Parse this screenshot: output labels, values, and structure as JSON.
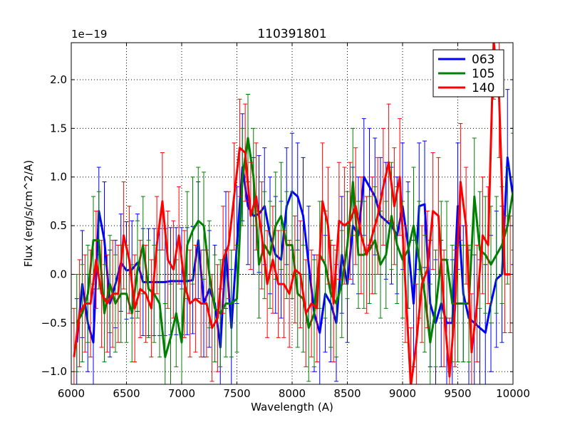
{
  "chart_data": {
    "type": "line",
    "title": "110391801",
    "xlabel": "Wavelength (A)",
    "ylabel": "Flux (erg/s/cm^2/A)",
    "offset_label": "1e−19",
    "xlim": [
      6000,
      10000
    ],
    "ylim": [
      -1.13,
      2.38
    ],
    "xticks": [
      6000,
      6500,
      7000,
      7500,
      8000,
      8500,
      9000,
      9500,
      10000
    ],
    "yticks": [
      -1.0,
      -0.5,
      0.0,
      0.5,
      1.0,
      1.5,
      2.0
    ],
    "xtick_labels": [
      "6000",
      "6500",
      "7000",
      "7500",
      "8000",
      "8500",
      "9000",
      "9500",
      "10000"
    ],
    "ytick_labels": [
      "−1.0",
      "−0.5",
      "0.0",
      "0.5",
      "1.0",
      "1.5",
      "2.0"
    ],
    "grid": true,
    "legend_position": "top-right",
    "series": [
      {
        "name": "063",
        "color": "#0000ff",
        "x": [
          6050,
          6100,
          6150,
          6200,
          6250,
          6300,
          6350,
          6400,
          6450,
          6500,
          6550,
          6600,
          6650,
          6700,
          6750,
          6800,
          6850,
          6900,
          6950,
          7000,
          7050,
          7100,
          7150,
          7200,
          7250,
          7300,
          7350,
          7400,
          7450,
          7500,
          7550,
          7600,
          7650,
          7700,
          7750,
          7800,
          7850,
          7900,
          7950,
          8000,
          8050,
          8100,
          8150,
          8200,
          8250,
          8300,
          8350,
          8400,
          8450,
          8500,
          8550,
          8600,
          8650,
          8700,
          8750,
          8800,
          8850,
          8900,
          8950,
          9000,
          9050,
          9100,
          9150,
          9200,
          9250,
          9300,
          9350,
          9400,
          9450,
          9500,
          9550,
          9600,
          9650,
          9700,
          9750,
          9800,
          9850,
          9900,
          9950,
          10000
        ],
        "y": [
          -0.7,
          -0.1,
          -0.5,
          -0.7,
          0.65,
          0.35,
          -0.3,
          -0.1,
          0.12,
          0.04,
          0.05,
          0.12,
          -0.08,
          -0.08,
          -0.08,
          -0.08,
          -0.08,
          -0.07,
          -0.07,
          -0.07,
          -0.07,
          -0.06,
          0.35,
          -0.3,
          -0.15,
          -0.3,
          -0.75,
          0.25,
          -0.55,
          0.3,
          1.1,
          0.7,
          0.6,
          0.62,
          0.7,
          0.4,
          0.2,
          0.15,
          0.7,
          0.85,
          0.8,
          0.6,
          0.1,
          -0.4,
          -0.6,
          -0.2,
          -0.3,
          -0.5,
          0.2,
          -0.1,
          0.5,
          0.4,
          1.0,
          0.9,
          0.8,
          0.6,
          0.55,
          0.5,
          0.4,
          0.7,
          0.3,
          -0.3,
          0.7,
          0.72,
          -0.3,
          -0.5,
          -0.3,
          -0.5,
          -0.5,
          0.7,
          -0.2,
          -0.45,
          -0.5,
          -0.55,
          -0.6,
          -0.3,
          -0.05,
          0.0,
          1.2,
          0.8
        ],
        "err": [
          0.45,
          0.55,
          0.5,
          0.55,
          0.45,
          0.6,
          0.55,
          0.45,
          0.5,
          0.5,
          0.5,
          0.5,
          0.55,
          0.55,
          0.55,
          0.55,
          0.55,
          0.55,
          0.55,
          0.55,
          0.55,
          0.55,
          0.6,
          0.55,
          0.6,
          0.6,
          0.6,
          0.6,
          0.6,
          0.6,
          0.55,
          0.6,
          0.6,
          0.6,
          0.6,
          0.6,
          0.6,
          0.6,
          0.6,
          0.6,
          0.55,
          0.6,
          0.6,
          0.6,
          0.6,
          0.6,
          0.6,
          0.6,
          0.6,
          0.6,
          0.6,
          0.6,
          0.6,
          0.6,
          0.6,
          0.6,
          0.6,
          0.6,
          0.6,
          0.65,
          0.65,
          0.65,
          0.65,
          0.65,
          0.65,
          0.65,
          0.65,
          0.65,
          0.65,
          0.65,
          0.7,
          0.7,
          0.7,
          0.7,
          0.7,
          0.7,
          0.7,
          0.7,
          0.7,
          0.7
        ]
      },
      {
        "name": "105",
        "color": "#008000",
        "x": [
          6050,
          6100,
          6150,
          6200,
          6250,
          6300,
          6350,
          6400,
          6450,
          6500,
          6550,
          6600,
          6650,
          6700,
          6750,
          6800,
          6850,
          6900,
          6950,
          7000,
          7050,
          7100,
          7150,
          7200,
          7250,
          7300,
          7350,
          7400,
          7450,
          7500,
          7550,
          7600,
          7650,
          7700,
          7750,
          7800,
          7850,
          7900,
          7950,
          8000,
          8050,
          8100,
          8150,
          8200,
          8250,
          8300,
          8350,
          8400,
          8450,
          8500,
          8550,
          8600,
          8650,
          8700,
          8750,
          8800,
          8850,
          8900,
          8950,
          9000,
          9050,
          9100,
          9150,
          9200,
          9250,
          9300,
          9350,
          9400,
          9450,
          9500,
          9550,
          9600,
          9650,
          9700,
          9750,
          9800,
          9850,
          9900,
          9950,
          10000
        ],
        "y": [
          -0.5,
          -0.4,
          -0.2,
          0.35,
          0.35,
          -0.4,
          -0.1,
          -0.3,
          -0.2,
          -0.2,
          -0.4,
          0.05,
          0.3,
          -0.15,
          -0.2,
          -0.3,
          -0.85,
          -0.65,
          -0.4,
          -0.7,
          0.3,
          0.45,
          0.55,
          0.5,
          0.0,
          -0.35,
          -0.4,
          -0.3,
          -0.3,
          -0.25,
          1.0,
          1.4,
          1.0,
          0.1,
          0.3,
          0.2,
          0.5,
          0.6,
          0.3,
          0.3,
          -0.2,
          -0.25,
          -0.55,
          -0.4,
          0.2,
          0.1,
          -0.2,
          -0.3,
          -0.1,
          0.3,
          0.95,
          0.2,
          0.2,
          0.25,
          0.35,
          0.1,
          0.2,
          0.6,
          0.3,
          0.15,
          0.25,
          0.5,
          0.15,
          -0.2,
          -0.7,
          -0.35,
          0.15,
          0.15,
          -0.3,
          -0.3,
          -0.3,
          -0.3,
          0.8,
          0.25,
          0.2,
          0.1,
          0.2,
          0.3,
          0.5,
          0.85
        ],
        "err": [
          0.5,
          0.5,
          0.5,
          0.45,
          0.5,
          0.5,
          0.5,
          0.5,
          0.5,
          0.5,
          0.5,
          0.5,
          0.5,
          0.5,
          0.5,
          0.55,
          0.55,
          0.55,
          0.55,
          0.55,
          0.55,
          0.55,
          0.55,
          0.55,
          0.55,
          0.55,
          0.55,
          0.55,
          0.55,
          0.55,
          0.5,
          0.45,
          0.5,
          0.55,
          0.55,
          0.55,
          0.55,
          0.55,
          0.55,
          0.55,
          0.55,
          0.55,
          0.55,
          0.55,
          0.55,
          0.55,
          0.55,
          0.55,
          0.55,
          0.55,
          0.55,
          0.55,
          0.55,
          0.55,
          0.55,
          0.55,
          0.55,
          0.55,
          0.6,
          0.6,
          0.6,
          0.6,
          0.6,
          0.6,
          0.6,
          0.6,
          0.6,
          0.6,
          0.6,
          0.6,
          0.6,
          0.6,
          0.6,
          0.6,
          0.6,
          0.6,
          0.6,
          0.6,
          0.6,
          0.6
        ]
      },
      {
        "name": "140",
        "color": "#ff0000",
        "x": [
          6025,
          6075,
          6125,
          6175,
          6225,
          6275,
          6325,
          6375,
          6425,
          6475,
          6525,
          6575,
          6625,
          6675,
          6725,
          6775,
          6825,
          6875,
          6925,
          6975,
          7025,
          7075,
          7125,
          7175,
          7225,
          7275,
          7325,
          7375,
          7425,
          7475,
          7525,
          7575,
          7625,
          7675,
          7725,
          7775,
          7825,
          7875,
          7925,
          7975,
          8025,
          8075,
          8125,
          8175,
          8225,
          8275,
          8325,
          8375,
          8425,
          8475,
          8525,
          8575,
          8625,
          8675,
          8725,
          8775,
          8825,
          8875,
          8925,
          8975,
          9025,
          9075,
          9125,
          9175,
          9225,
          9275,
          9325,
          9375,
          9425,
          9475,
          9525,
          9575,
          9625,
          9675,
          9725,
          9775,
          9825,
          9875,
          9925,
          9975
        ],
        "y": [
          -0.85,
          -0.4,
          -0.3,
          -0.3,
          0.15,
          -0.2,
          -0.3,
          -0.2,
          -0.2,
          0.4,
          0.15,
          -0.35,
          -0.15,
          -0.2,
          -0.35,
          0.3,
          0.75,
          0.15,
          0.05,
          0.4,
          -0.1,
          -0.3,
          -0.25,
          -0.3,
          -0.3,
          -0.55,
          -0.45,
          0.15,
          0.3,
          0.8,
          1.3,
          1.25,
          0.6,
          0.8,
          0.4,
          -0.1,
          0.15,
          -0.1,
          -0.1,
          -0.2,
          0.05,
          0.0,
          -0.4,
          -0.3,
          -0.35,
          0.75,
          0.5,
          -0.3,
          0.55,
          0.5,
          0.55,
          0.7,
          0.4,
          0.2,
          0.4,
          0.6,
          0.9,
          1.15,
          0.7,
          1.0,
          -0.1,
          -1.15,
          -0.7,
          -0.1,
          0.05,
          0.65,
          0.6,
          -0.35,
          -1.05,
          -0.35,
          0.95,
          0.5,
          -0.8,
          -0.3,
          0.4,
          0.3,
          2.4,
          1.8,
          0.0,
          0.0
        ],
        "err": [
          0.5,
          0.55,
          0.5,
          0.55,
          0.5,
          0.55,
          0.5,
          0.55,
          0.5,
          0.55,
          0.55,
          0.55,
          0.5,
          0.5,
          0.5,
          0.5,
          0.5,
          0.5,
          0.5,
          0.5,
          0.55,
          0.55,
          0.55,
          0.55,
          0.55,
          0.55,
          0.55,
          0.55,
          0.55,
          0.55,
          0.5,
          0.5,
          0.55,
          0.55,
          0.55,
          0.55,
          0.55,
          0.55,
          0.55,
          0.55,
          0.55,
          0.55,
          0.55,
          0.55,
          0.55,
          0.6,
          0.6,
          0.6,
          0.6,
          0.6,
          0.6,
          0.6,
          0.6,
          0.6,
          0.6,
          0.6,
          0.6,
          0.6,
          0.6,
          0.6,
          0.6,
          0.6,
          0.6,
          0.6,
          0.6,
          0.6,
          0.6,
          0.6,
          0.6,
          0.6,
          0.6,
          0.6,
          0.6,
          0.6,
          0.6,
          0.6,
          0.6,
          0.6,
          0.6,
          0.6
        ]
      }
    ]
  }
}
